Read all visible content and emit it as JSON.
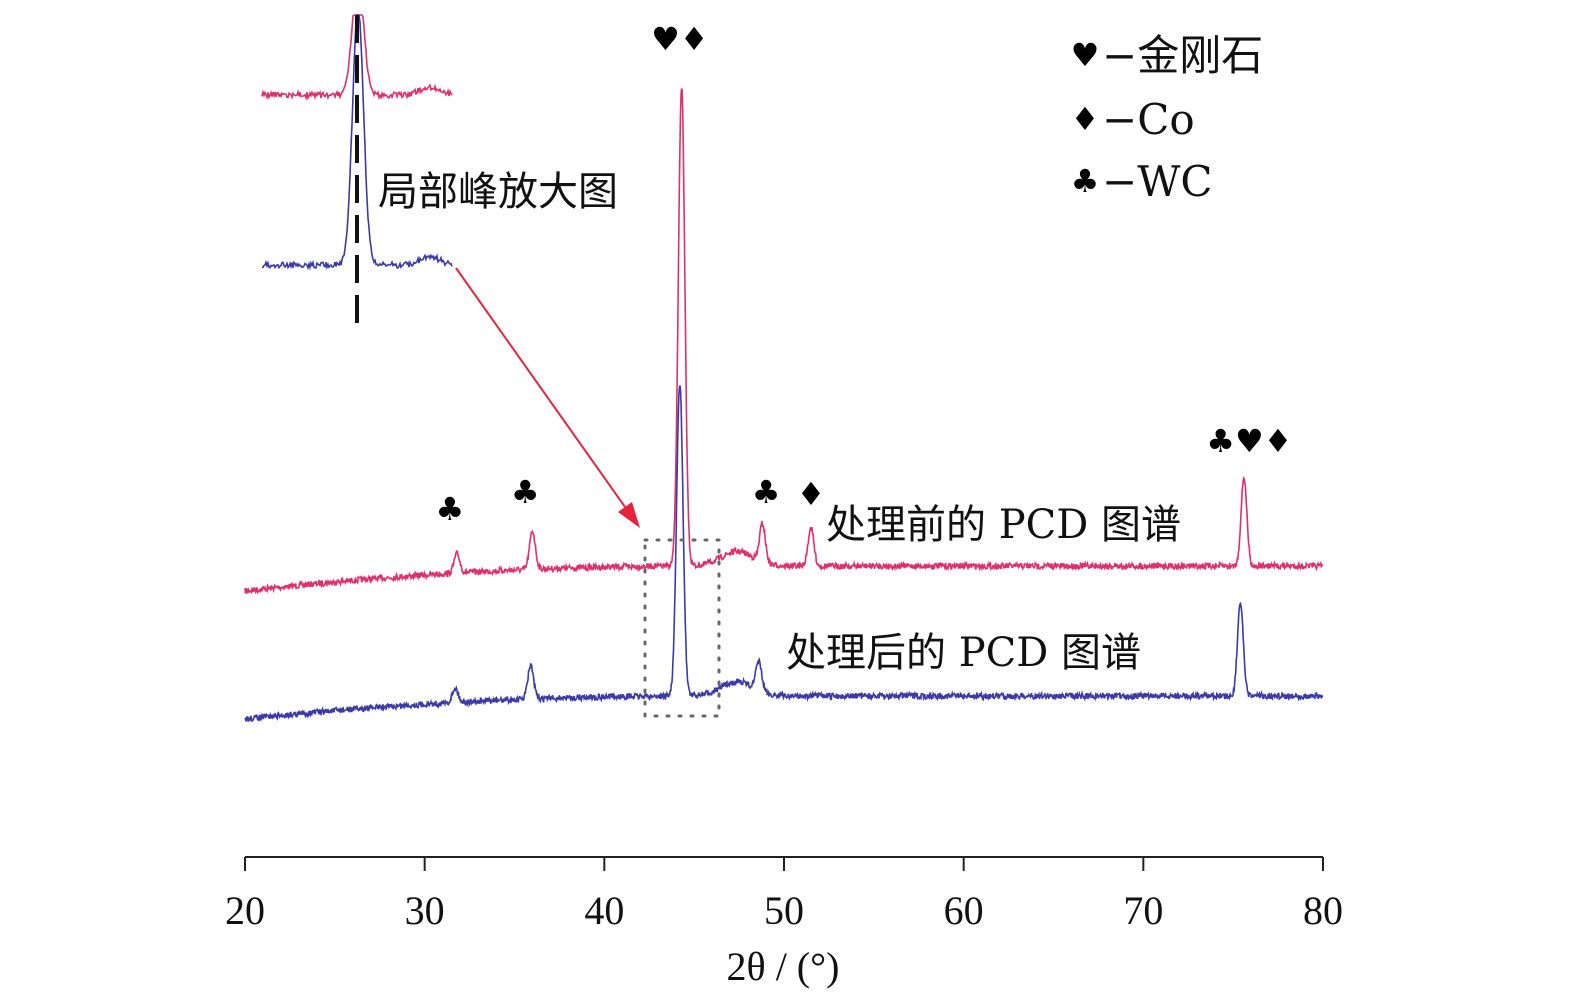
{
  "chart_data": {
    "type": "line",
    "xlabel": "2θ / (°)",
    "xlim": [
      20,
      80
    ],
    "x_ticks": [
      "20",
      "30",
      "40",
      "50",
      "60",
      "70",
      "80"
    ],
    "grid": false,
    "y_axis_shown": false,
    "series": [
      {
        "name": "处理前的 PCD 图谱",
        "color": "#e0306a",
        "baseline_start": 0.0,
        "baseline_end": 1.0,
        "peaks": [
          {
            "x": 31.8,
            "height": 0.8
          },
          {
            "x": 36.0,
            "height": 1.6
          },
          {
            "x": 44.3,
            "height": 20.0
          },
          {
            "x": 48.8,
            "height": 1.6
          },
          {
            "x": 51.5,
            "height": 1.6
          },
          {
            "x": 75.6,
            "height": 3.7
          }
        ]
      },
      {
        "name": "处理后的 PCD 图谱",
        "color": "#3a3aa8",
        "baseline_start": 0.0,
        "baseline_end": 1.0,
        "peaks": [
          {
            "x": 31.7,
            "height": 0.6
          },
          {
            "x": 35.9,
            "height": 1.4
          },
          {
            "x": 44.2,
            "height": 13.0
          },
          {
            "x": 48.6,
            "height": 1.2
          },
          {
            "x": 75.4,
            "height": 3.9
          }
        ]
      }
    ],
    "legend": {
      "placement": "top-right",
      "entries": [
        {
          "symbol": "♥",
          "label": "−金刚石"
        },
        {
          "symbol": "♦",
          "label": "−Co"
        },
        {
          "symbol": "♣",
          "label": "−WC"
        }
      ]
    },
    "peak_markers": [
      {
        "x": 31.4,
        "symbols": "♣"
      },
      {
        "x": 35.6,
        "symbols": "♣"
      },
      {
        "x": 44.2,
        "symbols": "♥♦"
      },
      {
        "x": 49.0,
        "symbols": "♣"
      },
      {
        "x": 51.5,
        "symbols": "♦"
      },
      {
        "x": 75.9,
        "symbols": "♣♥♦"
      }
    ],
    "annotations": {
      "inset_label": "局部峰放大图",
      "before_label": "处理前的 PCD 图谱",
      "after_label": "处理后的 PCD 图谱"
    }
  }
}
